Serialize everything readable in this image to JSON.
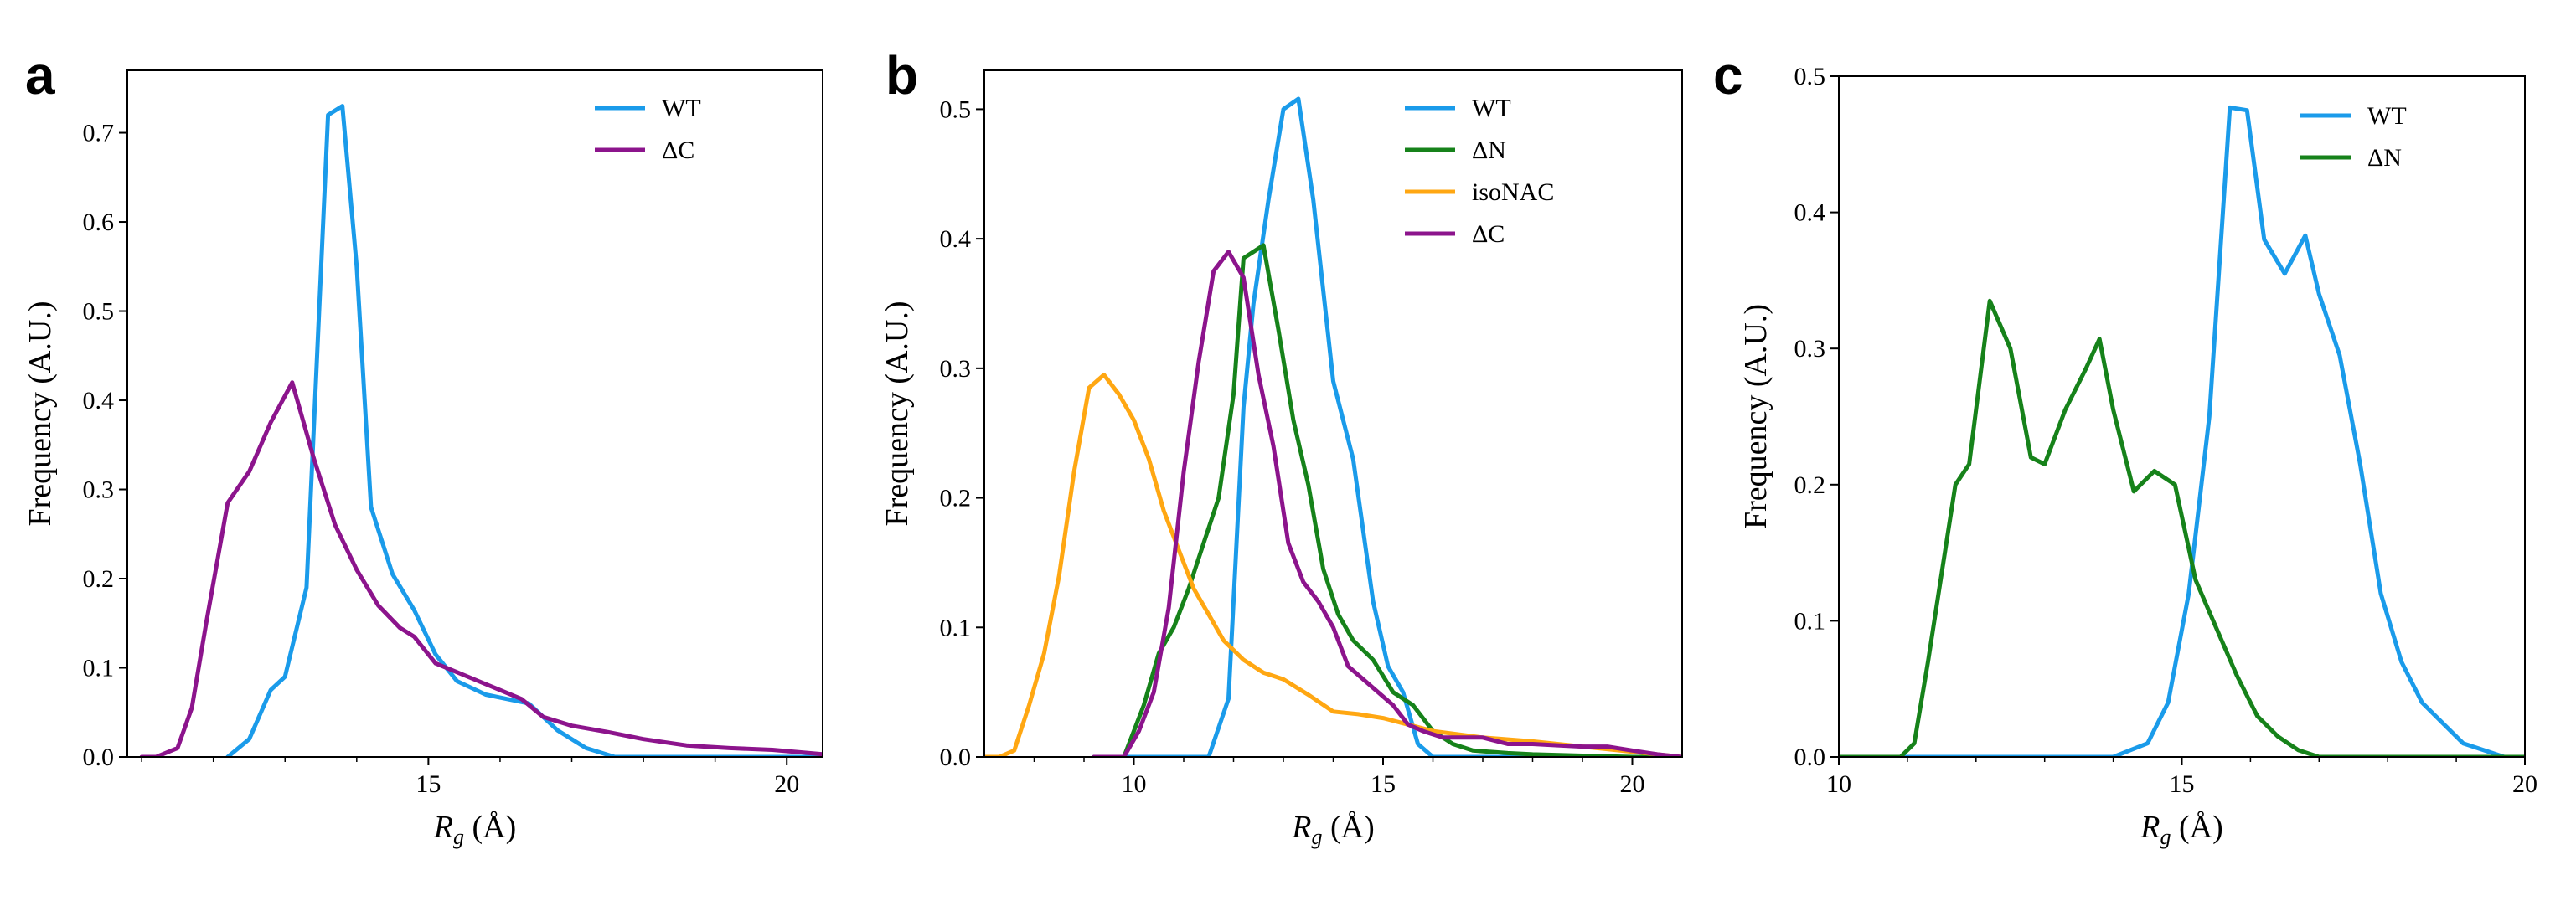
{
  "figure": {
    "panel_letters": [
      "a",
      "b",
      "c"
    ]
  },
  "colors": {
    "WT": "#1a9bea",
    "dN": "#16821a",
    "isoNAC": "#ffa712",
    "dC": "#8c148c"
  },
  "chart_data": [
    {
      "type": "line",
      "panel": "a",
      "xlabel": "R_g (Å)",
      "ylabel": "Frequency (A.U.)",
      "xlim": [
        10.8,
        20.5
      ],
      "ylim": [
        0,
        0.77
      ],
      "xticks": [
        15,
        20
      ],
      "xtick_labels": [
        "15",
        "20"
      ],
      "x_minor": [
        11,
        12,
        13,
        14,
        16,
        17,
        18,
        19
      ],
      "yticks": [
        0,
        0.1,
        0.2,
        0.3,
        0.4,
        0.5,
        0.6,
        0.7
      ],
      "ytick_labels": [
        "0.0",
        "0.1",
        "0.2",
        "0.3",
        "0.4",
        "0.5",
        "0.6",
        "0.7"
      ],
      "legend": {
        "position": "top-right"
      },
      "series": [
        {
          "name": "WT",
          "color": "#1a9bea",
          "x": [
            12.2,
            12.5,
            12.8,
            13.0,
            13.3,
            13.6,
            13.8,
            14.0,
            14.2,
            14.5,
            14.8,
            15.1,
            15.4,
            15.8,
            16.1,
            16.4,
            16.8,
            17.2,
            17.6,
            18.0,
            19.0,
            20.5
          ],
          "y": [
            0.0,
            0.02,
            0.075,
            0.09,
            0.19,
            0.72,
            0.73,
            0.55,
            0.28,
            0.205,
            0.165,
            0.115,
            0.085,
            0.07,
            0.065,
            0.06,
            0.03,
            0.01,
            0.0,
            0.0,
            0.0,
            0.0
          ]
        },
        {
          "name": "ΔC",
          "color": "#8c148c",
          "x": [
            11.0,
            11.2,
            11.5,
            11.7,
            11.9,
            12.2,
            12.5,
            12.8,
            13.1,
            13.4,
            13.7,
            14.0,
            14.3,
            14.6,
            14.8,
            15.1,
            15.4,
            15.7,
            16.0,
            16.3,
            16.6,
            17.0,
            17.5,
            18.0,
            18.6,
            19.2,
            19.8,
            20.5
          ],
          "y": [
            0.0,
            0.0,
            0.01,
            0.055,
            0.15,
            0.285,
            0.32,
            0.375,
            0.42,
            0.335,
            0.26,
            0.21,
            0.17,
            0.145,
            0.135,
            0.105,
            0.095,
            0.085,
            0.075,
            0.065,
            0.045,
            0.035,
            0.028,
            0.02,
            0.013,
            0.01,
            0.008,
            0.003
          ]
        }
      ]
    },
    {
      "type": "line",
      "panel": "b",
      "xlabel": "R_g (Å)",
      "ylabel": "Frequency (A.U.)",
      "xlim": [
        7.0,
        21.0
      ],
      "ylim": [
        0,
        0.53
      ],
      "xticks": [
        10,
        15,
        20
      ],
      "xtick_labels": [
        "10",
        "15",
        "20"
      ],
      "x_minor": [
        8,
        9,
        11,
        12,
        13,
        14,
        16,
        17,
        18,
        19,
        21
      ],
      "yticks": [
        0,
        0.1,
        0.2,
        0.3,
        0.4,
        0.5
      ],
      "ytick_labels": [
        "0.0",
        "0.1",
        "0.2",
        "0.3",
        "0.4",
        "0.5"
      ],
      "legend": {
        "position": "top-right"
      },
      "series": [
        {
          "name": "WT",
          "color": "#1a9bea",
          "x": [
            11.5,
            11.9,
            12.2,
            12.4,
            12.7,
            13.0,
            13.3,
            13.6,
            14.0,
            14.4,
            14.8,
            15.1,
            15.4,
            15.7,
            16.0,
            17.0,
            21.0
          ],
          "y": [
            0.0,
            0.045,
            0.27,
            0.35,
            0.43,
            0.5,
            0.508,
            0.43,
            0.29,
            0.23,
            0.12,
            0.07,
            0.05,
            0.01,
            0.0,
            0.0,
            0.0
          ],
          "baseline_from": 9.2
        },
        {
          "name": "ΔN",
          "color": "#16821a",
          "x": [
            9.8,
            10.0,
            10.2,
            10.5,
            10.8,
            11.1,
            11.4,
            11.7,
            12.0,
            12.2,
            12.4,
            12.6,
            12.9,
            13.2,
            13.5,
            13.8,
            14.1,
            14.4,
            14.8,
            15.2,
            15.6,
            16.0,
            16.4,
            16.8,
            17.5,
            18.0,
            19.0,
            20.0,
            21.0
          ],
          "y": [
            0.0,
            0.02,
            0.04,
            0.08,
            0.1,
            0.13,
            0.165,
            0.2,
            0.28,
            0.385,
            0.39,
            0.395,
            0.33,
            0.26,
            0.21,
            0.145,
            0.11,
            0.09,
            0.075,
            0.05,
            0.04,
            0.02,
            0.01,
            0.005,
            0.003,
            0.002,
            0.001,
            0.0,
            0.0
          ],
          "baseline_from": 9.2
        },
        {
          "name": "isoNAC",
          "color": "#ffa712",
          "x": [
            7.0,
            7.3,
            7.6,
            7.9,
            8.2,
            8.5,
            8.8,
            9.1,
            9.4,
            9.7,
            10.0,
            10.3,
            10.6,
            10.9,
            11.2,
            11.5,
            11.8,
            12.2,
            12.6,
            13.0,
            13.5,
            14.0,
            14.5,
            15.0,
            15.5,
            16.0,
            17.0,
            18.0,
            19.0,
            20.0,
            21.0
          ],
          "y": [
            0.0,
            0.0,
            0.005,
            0.04,
            0.08,
            0.14,
            0.22,
            0.285,
            0.295,
            0.28,
            0.26,
            0.23,
            0.19,
            0.16,
            0.13,
            0.11,
            0.09,
            0.075,
            0.065,
            0.06,
            0.048,
            0.035,
            0.033,
            0.03,
            0.025,
            0.02,
            0.015,
            0.012,
            0.008,
            0.004,
            0.0
          ]
        },
        {
          "name": "ΔC",
          "color": "#8c148c",
          "x": [
            9.8,
            10.1,
            10.4,
            10.7,
            11.0,
            11.3,
            11.6,
            11.9,
            12.2,
            12.5,
            12.8,
            13.1,
            13.4,
            13.7,
            14.0,
            14.3,
            14.6,
            14.9,
            15.2,
            15.5,
            15.8,
            16.2,
            16.6,
            17.0,
            17.5,
            18.0,
            18.5,
            19.0,
            19.5,
            20.0,
            20.5,
            21.0
          ],
          "y": [
            0.0,
            0.02,
            0.05,
            0.115,
            0.22,
            0.305,
            0.375,
            0.39,
            0.37,
            0.295,
            0.24,
            0.165,
            0.135,
            0.12,
            0.1,
            0.07,
            0.06,
            0.05,
            0.04,
            0.025,
            0.02,
            0.015,
            0.015,
            0.015,
            0.01,
            0.01,
            0.009,
            0.008,
            0.008,
            0.005,
            0.002,
            0.0
          ],
          "baseline_from": 9.2
        }
      ]
    },
    {
      "type": "line",
      "panel": "c",
      "xlabel": "R_g (Å)",
      "ylabel": "Frequency (A.U.)",
      "xlim": [
        10.0,
        20.0
      ],
      "ylim": [
        0,
        0.5
      ],
      "xticks": [
        10,
        15,
        20
      ],
      "xtick_labels": [
        "10",
        "15",
        "20"
      ],
      "x_minor": [
        11,
        12,
        13,
        14,
        16,
        17,
        18,
        19
      ],
      "yticks": [
        0,
        0.1,
        0.2,
        0.3,
        0.4,
        0.5
      ],
      "ytick_labels": [
        "0.0",
        "0.1",
        "0.2",
        "0.3",
        "0.4",
        "0.5"
      ],
      "legend": {
        "position": "top-right"
      },
      "series": [
        {
          "name": "WT",
          "color": "#1a9bea",
          "x": [
            10.0,
            14.0,
            14.5,
            14.8,
            15.1,
            15.4,
            15.7,
            15.95,
            16.2,
            16.5,
            16.8,
            17.0,
            17.3,
            17.6,
            17.9,
            18.2,
            18.5,
            18.8,
            19.1,
            19.4,
            19.7,
            20.0
          ],
          "y": [
            0.0,
            0.0,
            0.01,
            0.04,
            0.12,
            0.25,
            0.477,
            0.475,
            0.38,
            0.355,
            0.383,
            0.34,
            0.295,
            0.215,
            0.12,
            0.07,
            0.04,
            0.025,
            0.01,
            0.005,
            0.0,
            0.0
          ]
        },
        {
          "name": "ΔN",
          "color": "#16821a",
          "x": [
            10.0,
            10.9,
            11.1,
            11.3,
            11.5,
            11.7,
            11.9,
            12.2,
            12.5,
            12.8,
            13.0,
            13.3,
            13.6,
            13.8,
            14.0,
            14.3,
            14.6,
            14.9,
            15.2,
            15.5,
            15.8,
            16.1,
            16.4,
            16.7,
            17.0,
            20.0
          ],
          "y": [
            0.0,
            0.0,
            0.01,
            0.07,
            0.135,
            0.2,
            0.215,
            0.335,
            0.3,
            0.22,
            0.215,
            0.255,
            0.285,
            0.307,
            0.255,
            0.195,
            0.21,
            0.2,
            0.13,
            0.095,
            0.06,
            0.03,
            0.015,
            0.005,
            0.0,
            0.0
          ]
        }
      ]
    }
  ]
}
